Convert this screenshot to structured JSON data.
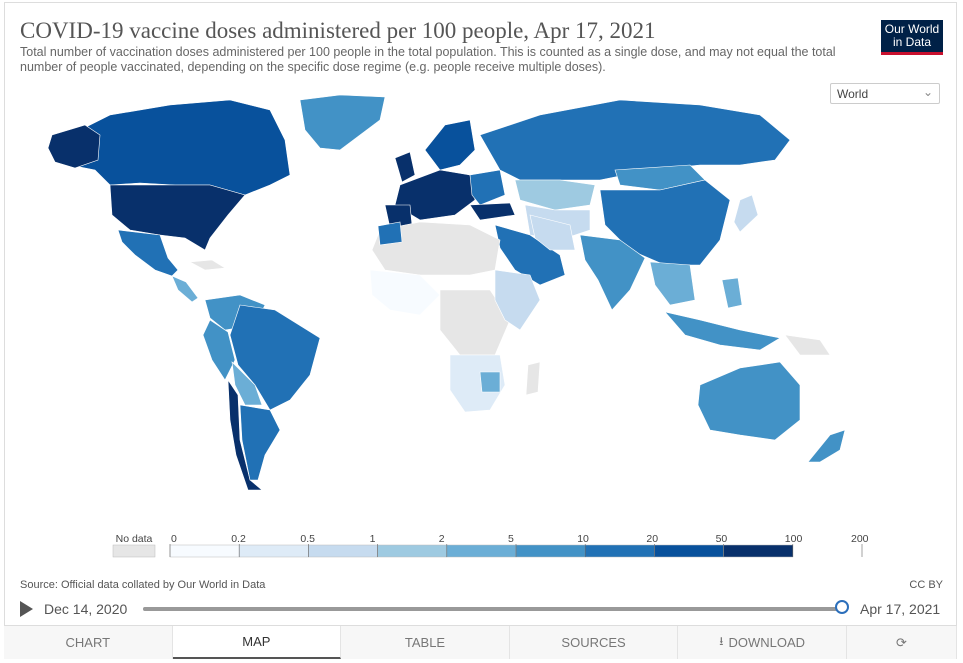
{
  "title": "COVID-19 vaccine doses administered per 100 people, Apr 17, 2021",
  "subtitle": "Total number of vaccination doses administered per 100 people in the total population. This is counted as a single dose, and may not equal the total number of people vaccinated, depending on the specific dose regime (e.g. people receive multiple doses).",
  "logo": {
    "line1": "Our World",
    "line2": "in Data"
  },
  "entity_selector": {
    "value": "World",
    "icon": "chevron-down-icon"
  },
  "legend": {
    "no_data_label": "No data",
    "ticks": [
      "0",
      "0.2",
      "0.5",
      "1",
      "2",
      "5",
      "10",
      "20",
      "50",
      "100",
      "200"
    ],
    "colors": [
      "#f7fbff",
      "#deebf7",
      "#c6dbef",
      "#9ecae1",
      "#6baed6",
      "#4292c6",
      "#2171b5",
      "#08519c",
      "#08306b"
    ],
    "no_data_color": "#e6e6e6"
  },
  "source": "Source: Official data collated by Our World in Data",
  "license": "CC BY",
  "timeline": {
    "start": "Dec 14, 2020",
    "end": "Apr 17, 2021",
    "position": 1.0
  },
  "tabs": [
    {
      "label": "CHART",
      "active": false
    },
    {
      "label": "MAP",
      "active": true
    },
    {
      "label": "TABLE",
      "active": false
    },
    {
      "label": "SOURCES",
      "active": false
    },
    {
      "label": "DOWNLOAD",
      "active": false,
      "icon": "download-icon"
    },
    {
      "label": "",
      "active": false,
      "icon": "share-icon"
    }
  ]
}
